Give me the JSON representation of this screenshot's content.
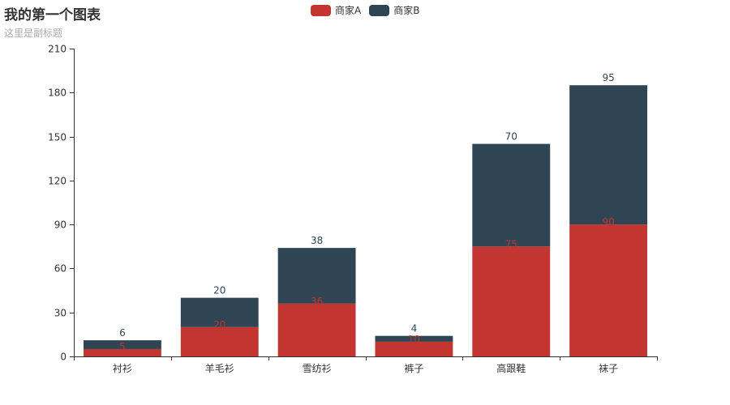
{
  "title": "我的第一个图表",
  "subtitle": "这里是副标题",
  "colors": {
    "series_a": "#c23531",
    "series_b": "#2f4554",
    "axis": "#333333",
    "text": "#333333",
    "subtitle": "#aaaaaa"
  },
  "chart_data": {
    "type": "bar",
    "stacked": true,
    "categories": [
      "衬衫",
      "羊毛衫",
      "雪纺衫",
      "裤子",
      "高跟鞋",
      "袜子"
    ],
    "series": [
      {
        "name": "商家A",
        "values": [
          5,
          20,
          36,
          10,
          75,
          90
        ],
        "color": "#c23531"
      },
      {
        "name": "商家B",
        "values": [
          6,
          20,
          38,
          4,
          70,
          95
        ],
        "color": "#2f4554"
      }
    ],
    "ylim": [
      0,
      210
    ],
    "yticks": [
      0,
      30,
      60,
      90,
      120,
      150,
      180,
      210
    ],
    "legend_position": "top-center",
    "grid": false
  }
}
